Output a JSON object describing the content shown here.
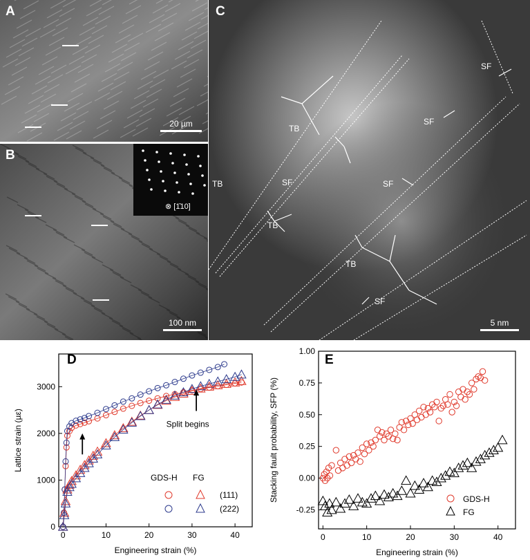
{
  "panels": {
    "A": {
      "label": "A",
      "scale_text": "20 µm"
    },
    "B": {
      "label": "B",
      "scale_text": "100 nm",
      "inset_text": "⊗ [1̄10]"
    },
    "C": {
      "label": "C",
      "scale_text": "5 nm",
      "annotations": [
        "SF",
        "SF",
        "TB",
        "TB",
        "SF",
        "SF",
        "TB",
        "TB",
        "SF"
      ]
    },
    "D": {
      "label": "D"
    },
    "E": {
      "label": "E"
    }
  },
  "colors": {
    "red": "#e0392b",
    "blue": "#2c3a8c",
    "black": "#000000"
  },
  "chart_data": [
    {
      "type": "scatter",
      "panel": "D",
      "xlabel": "Engineering strain (%)",
      "ylabel": "Lattice strain (µε)",
      "xlim": [
        -1,
        44
      ],
      "ylim": [
        0,
        3700
      ],
      "xticks": [
        0,
        10,
        20,
        30,
        40
      ],
      "yticks": [
        0,
        1000,
        2000,
        3000
      ],
      "legend": {
        "col_headers": [
          "GDS-H",
          "FG"
        ],
        "rows": [
          "(111)",
          "(222)"
        ]
      },
      "annotation_text": "Split begins",
      "series": [
        {
          "name": "GDS-H (111)",
          "marker": "circle",
          "color": "red",
          "x": [
            0,
            0.2,
            0.4,
            0.6,
            0.8,
            1,
            1.5,
            2,
            3,
            4,
            5,
            6,
            8,
            10,
            12,
            14,
            16,
            18,
            20,
            22,
            24,
            26,
            28,
            30,
            32,
            34,
            36,
            38,
            40,
            41.5
          ],
          "y": [
            0,
            300,
            800,
            1300,
            1700,
            1950,
            2050,
            2120,
            2170,
            2200,
            2230,
            2260,
            2320,
            2390,
            2460,
            2530,
            2590,
            2650,
            2700,
            2750,
            2800,
            2840,
            2880,
            2920,
            2950,
            2980,
            3010,
            3040,
            3070,
            3090
          ]
        },
        {
          "name": "GDS-H (222)",
          "marker": "circle",
          "color": "blue",
          "x": [
            0,
            0.2,
            0.4,
            0.6,
            0.8,
            1,
            1.5,
            2,
            3,
            4,
            5,
            6,
            8,
            10,
            12,
            14,
            16,
            18,
            20,
            22,
            24,
            26,
            28,
            30,
            32,
            34,
            36,
            37.5
          ],
          "y": [
            0,
            300,
            800,
            1400,
            1800,
            2050,
            2150,
            2220,
            2270,
            2300,
            2330,
            2370,
            2440,
            2520,
            2600,
            2680,
            2750,
            2830,
            2900,
            2970,
            3030,
            3100,
            3170,
            3240,
            3300,
            3360,
            3420,
            3480
          ]
        },
        {
          "name": "FG (111)",
          "marker": "triangle",
          "color": "red",
          "x": [
            0,
            0.3,
            0.6,
            1,
            1.5,
            2,
            3,
            4,
            5,
            6,
            7,
            8,
            10,
            12,
            14,
            16,
            18,
            20,
            22,
            24,
            26,
            28,
            30,
            32,
            34,
            36,
            38,
            40,
            41.5
          ],
          "y": [
            0,
            300,
            550,
            800,
            900,
            980,
            1100,
            1220,
            1320,
            1420,
            1520,
            1610,
            1790,
            1960,
            2110,
            2250,
            2380,
            2500,
            2610,
            2700,
            2780,
            2850,
            2910,
            2960,
            3000,
            3030,
            3060,
            3090,
            3120
          ]
        },
        {
          "name": "FG (222)",
          "marker": "triangle",
          "color": "blue",
          "x": [
            0,
            0.3,
            0.6,
            1,
            1.5,
            2,
            3,
            4,
            5,
            6,
            7,
            8,
            10,
            12,
            14,
            16,
            18,
            20,
            22,
            24,
            26,
            28,
            30,
            32,
            34,
            36,
            38,
            40,
            41.5
          ],
          "y": [
            0,
            250,
            500,
            750,
            850,
            920,
            1040,
            1150,
            1260,
            1360,
            1460,
            1550,
            1740,
            1920,
            2080,
            2230,
            2370,
            2500,
            2620,
            2720,
            2810,
            2880,
            2950,
            3010,
            3060,
            3110,
            3160,
            3210,
            3260
          ]
        }
      ]
    },
    {
      "type": "scatter",
      "panel": "E",
      "xlabel": "Engineering strain (%)",
      "ylabel": "Stacking fault probability, SFP (%)",
      "xlim": [
        -1,
        44
      ],
      "ylim": [
        -0.4,
        1.0
      ],
      "xticks": [
        0,
        10,
        20,
        30,
        40
      ],
      "yticks": [
        -0.25,
        0.0,
        0.25,
        0.5,
        0.75,
        1.0
      ],
      "ytick_labels": [
        "-0.25",
        "0.00",
        "0.25",
        "0.50",
        "0.75",
        "1.00"
      ],
      "legend": {
        "entries": [
          "GDS-H",
          "FG"
        ]
      },
      "series": [
        {
          "name": "GDS-H",
          "marker": "circle",
          "color": "red",
          "x": [
            0,
            0.3,
            0.5,
            0.8,
            1,
            1.3,
            1.6,
            2,
            3,
            3.5,
            4,
            4.5,
            5,
            5.5,
            6,
            6.5,
            7,
            7.5,
            8,
            8.5,
            9,
            9.5,
            10,
            10.5,
            11,
            11.5,
            12,
            12.5,
            13,
            13.5,
            14,
            14.5,
            15,
            15.5,
            16,
            16.5,
            17,
            17.5,
            18,
            18.5,
            19,
            19.5,
            20,
            20.5,
            21,
            21.5,
            22,
            22.5,
            23,
            23.5,
            24,
            24.5,
            25,
            25.5,
            26,
            26.5,
            27,
            27.5,
            28,
            28.5,
            29,
            29.5,
            30,
            30.5,
            31,
            31.5,
            32,
            32.5,
            33,
            33.5,
            34,
            34.5,
            35,
            35.5,
            36,
            36.5,
            37
          ],
          "y": [
            0.0,
            0.03,
            -0.02,
            0.05,
            0.0,
            0.08,
            0.02,
            0.1,
            0.22,
            0.06,
            0.12,
            0.08,
            0.15,
            0.1,
            0.17,
            0.12,
            0.18,
            0.15,
            0.2,
            0.13,
            0.24,
            0.19,
            0.27,
            0.22,
            0.28,
            0.25,
            0.3,
            0.38,
            0.33,
            0.36,
            0.3,
            0.35,
            0.33,
            0.38,
            0.31,
            0.35,
            0.3,
            0.4,
            0.44,
            0.38,
            0.45,
            0.42,
            0.47,
            0.43,
            0.5,
            0.46,
            0.53,
            0.48,
            0.56,
            0.5,
            0.55,
            0.52,
            0.58,
            0.56,
            0.6,
            0.45,
            0.55,
            0.57,
            0.62,
            0.58,
            0.66,
            0.52,
            0.6,
            0.57,
            0.68,
            0.64,
            0.7,
            0.62,
            0.68,
            0.66,
            0.75,
            0.7,
            0.78,
            0.8,
            0.79,
            0.84,
            0.77
          ]
        },
        {
          "name": "FG",
          "marker": "triangle",
          "color": "black",
          "x": [
            0,
            0.5,
            1,
            1.5,
            2,
            3,
            4,
            5,
            6,
            7,
            8,
            9,
            10,
            11,
            12,
            13,
            14,
            15,
            16,
            17,
            18,
            19,
            20,
            21,
            22,
            23,
            24,
            25,
            26,
            27,
            28,
            29,
            30,
            31,
            32,
            33,
            34,
            35,
            36,
            37,
            38,
            39,
            40,
            41
          ],
          "y": [
            -0.18,
            -0.22,
            -0.27,
            -0.2,
            -0.25,
            -0.19,
            -0.24,
            -0.2,
            -0.17,
            -0.22,
            -0.16,
            -0.19,
            -0.2,
            -0.16,
            -0.14,
            -0.18,
            -0.13,
            -0.15,
            -0.12,
            -0.14,
            -0.1,
            -0.02,
            -0.12,
            -0.06,
            -0.09,
            -0.04,
            -0.07,
            -0.02,
            -0.03,
            0.0,
            0.02,
            0.05,
            0.04,
            0.08,
            0.1,
            0.12,
            0.08,
            0.13,
            0.15,
            0.18,
            0.2,
            0.22,
            0.24,
            0.3
          ]
        }
      ]
    }
  ]
}
